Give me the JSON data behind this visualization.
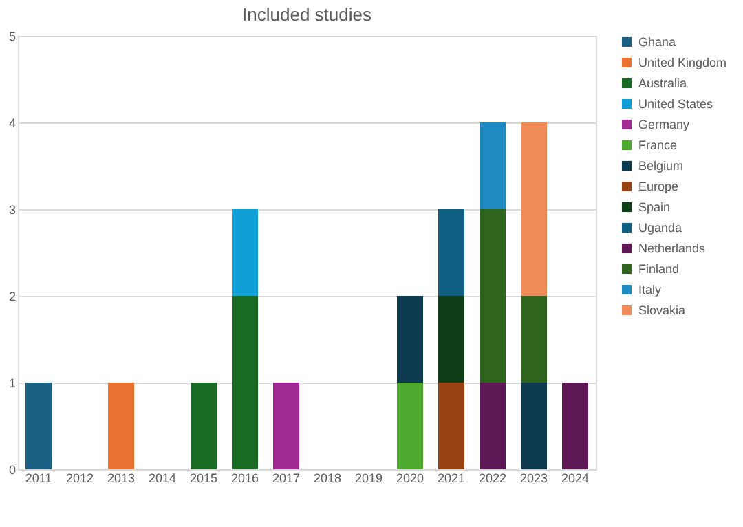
{
  "chart_data": {
    "type": "bar",
    "title": "Included studies",
    "stacked": true,
    "categories": [
      "2011",
      "2012",
      "2013",
      "2014",
      "2015",
      "2016",
      "2017",
      "2018",
      "2019",
      "2020",
      "2021",
      "2022",
      "2023",
      "2024"
    ],
    "series": [
      {
        "name": "Ghana",
        "color": "#1a6185",
        "values": [
          1,
          null,
          null,
          null,
          null,
          null,
          null,
          null,
          null,
          null,
          null,
          null,
          null,
          null
        ]
      },
      {
        "name": "United Kingdom",
        "color": "#e97132",
        "values": [
          null,
          null,
          1,
          null,
          null,
          null,
          null,
          null,
          null,
          null,
          null,
          null,
          null,
          null
        ]
      },
      {
        "name": "Australia",
        "color": "#196b24",
        "values": [
          null,
          null,
          null,
          null,
          1,
          2,
          null,
          null,
          null,
          null,
          null,
          null,
          null,
          null
        ]
      },
      {
        "name": "United States",
        "color": "#0f9ed5",
        "values": [
          null,
          null,
          null,
          null,
          null,
          1,
          null,
          null,
          null,
          null,
          null,
          null,
          null,
          null
        ]
      },
      {
        "name": "Germany",
        "color": "#a02b93",
        "values": [
          null,
          null,
          null,
          null,
          null,
          null,
          1,
          null,
          null,
          null,
          null,
          null,
          null,
          null
        ]
      },
      {
        "name": "France",
        "color": "#4ea72e",
        "values": [
          null,
          null,
          null,
          null,
          null,
          null,
          null,
          null,
          null,
          1,
          null,
          null,
          null,
          null
        ]
      },
      {
        "name": "Belgium",
        "color": "#0e3a50",
        "values": [
          null,
          null,
          null,
          null,
          null,
          null,
          null,
          null,
          null,
          1,
          null,
          null,
          1,
          null
        ]
      },
      {
        "name": "Europe",
        "color": "#974012",
        "values": [
          null,
          null,
          null,
          null,
          null,
          null,
          null,
          null,
          null,
          null,
          1,
          null,
          null,
          null
        ]
      },
      {
        "name": "Spain",
        "color": "#0e3e17",
        "values": [
          null,
          null,
          null,
          null,
          null,
          null,
          null,
          null,
          null,
          null,
          1,
          null,
          null,
          null
        ]
      },
      {
        "name": "Uganda",
        "color": "#0f5f82",
        "values": [
          null,
          null,
          null,
          null,
          null,
          null,
          null,
          null,
          null,
          null,
          1,
          null,
          null,
          null
        ]
      },
      {
        "name": "Netherlands",
        "color": "#5e1856",
        "values": [
          null,
          null,
          null,
          null,
          null,
          null,
          null,
          null,
          null,
          null,
          null,
          1,
          null,
          1
        ]
      },
      {
        "name": "Finland",
        "color": "#2f641e",
        "values": [
          null,
          null,
          null,
          null,
          null,
          null,
          null,
          null,
          null,
          null,
          null,
          2,
          1,
          null
        ]
      },
      {
        "name": "Italy",
        "color": "#1f8bc2",
        "values": [
          null,
          null,
          null,
          null,
          null,
          null,
          null,
          null,
          null,
          null,
          null,
          1,
          null,
          null
        ]
      },
      {
        "name": "Slovakia",
        "color": "#ef8c57",
        "values": [
          null,
          null,
          null,
          null,
          null,
          null,
          null,
          null,
          null,
          null,
          null,
          null,
          2,
          null
        ]
      }
    ],
    "ylim": [
      0,
      5
    ],
    "yticks": [
      0,
      1,
      2,
      3,
      4,
      5
    ],
    "grid": "y",
    "legend": "right"
  }
}
